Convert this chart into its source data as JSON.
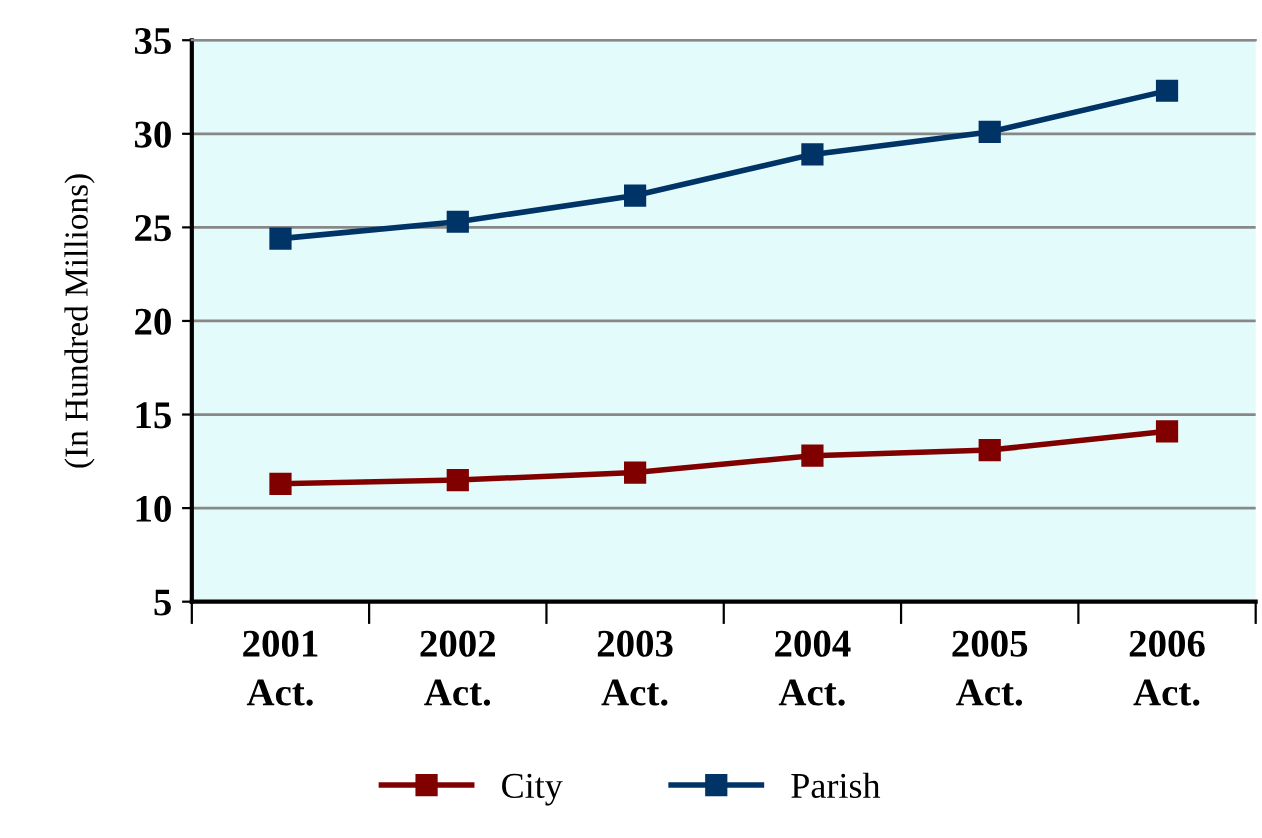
{
  "chart_data": {
    "type": "line",
    "ylabel": "(In Hundred Millions)",
    "categories": [
      "2001\nAct.",
      "2002\nAct.",
      "2003\nAct.",
      "2004\nAct.",
      "2005\nAct.",
      "2006\nAct."
    ],
    "series": [
      {
        "name": "City",
        "color": "#800000",
        "values": [
          11.3,
          11.5,
          11.9,
          12.8,
          13.1,
          14.1
        ]
      },
      {
        "name": "Parish",
        "color": "#003366",
        "values": [
          24.4,
          25.3,
          26.7,
          28.9,
          30.1,
          32.3
        ]
      }
    ],
    "ylim": [
      5,
      35
    ],
    "yticks": [
      5,
      10,
      15,
      20,
      25,
      30,
      35
    ],
    "grid": "y",
    "legend": "bottom",
    "marker": "square",
    "line_style": "solid"
  }
}
